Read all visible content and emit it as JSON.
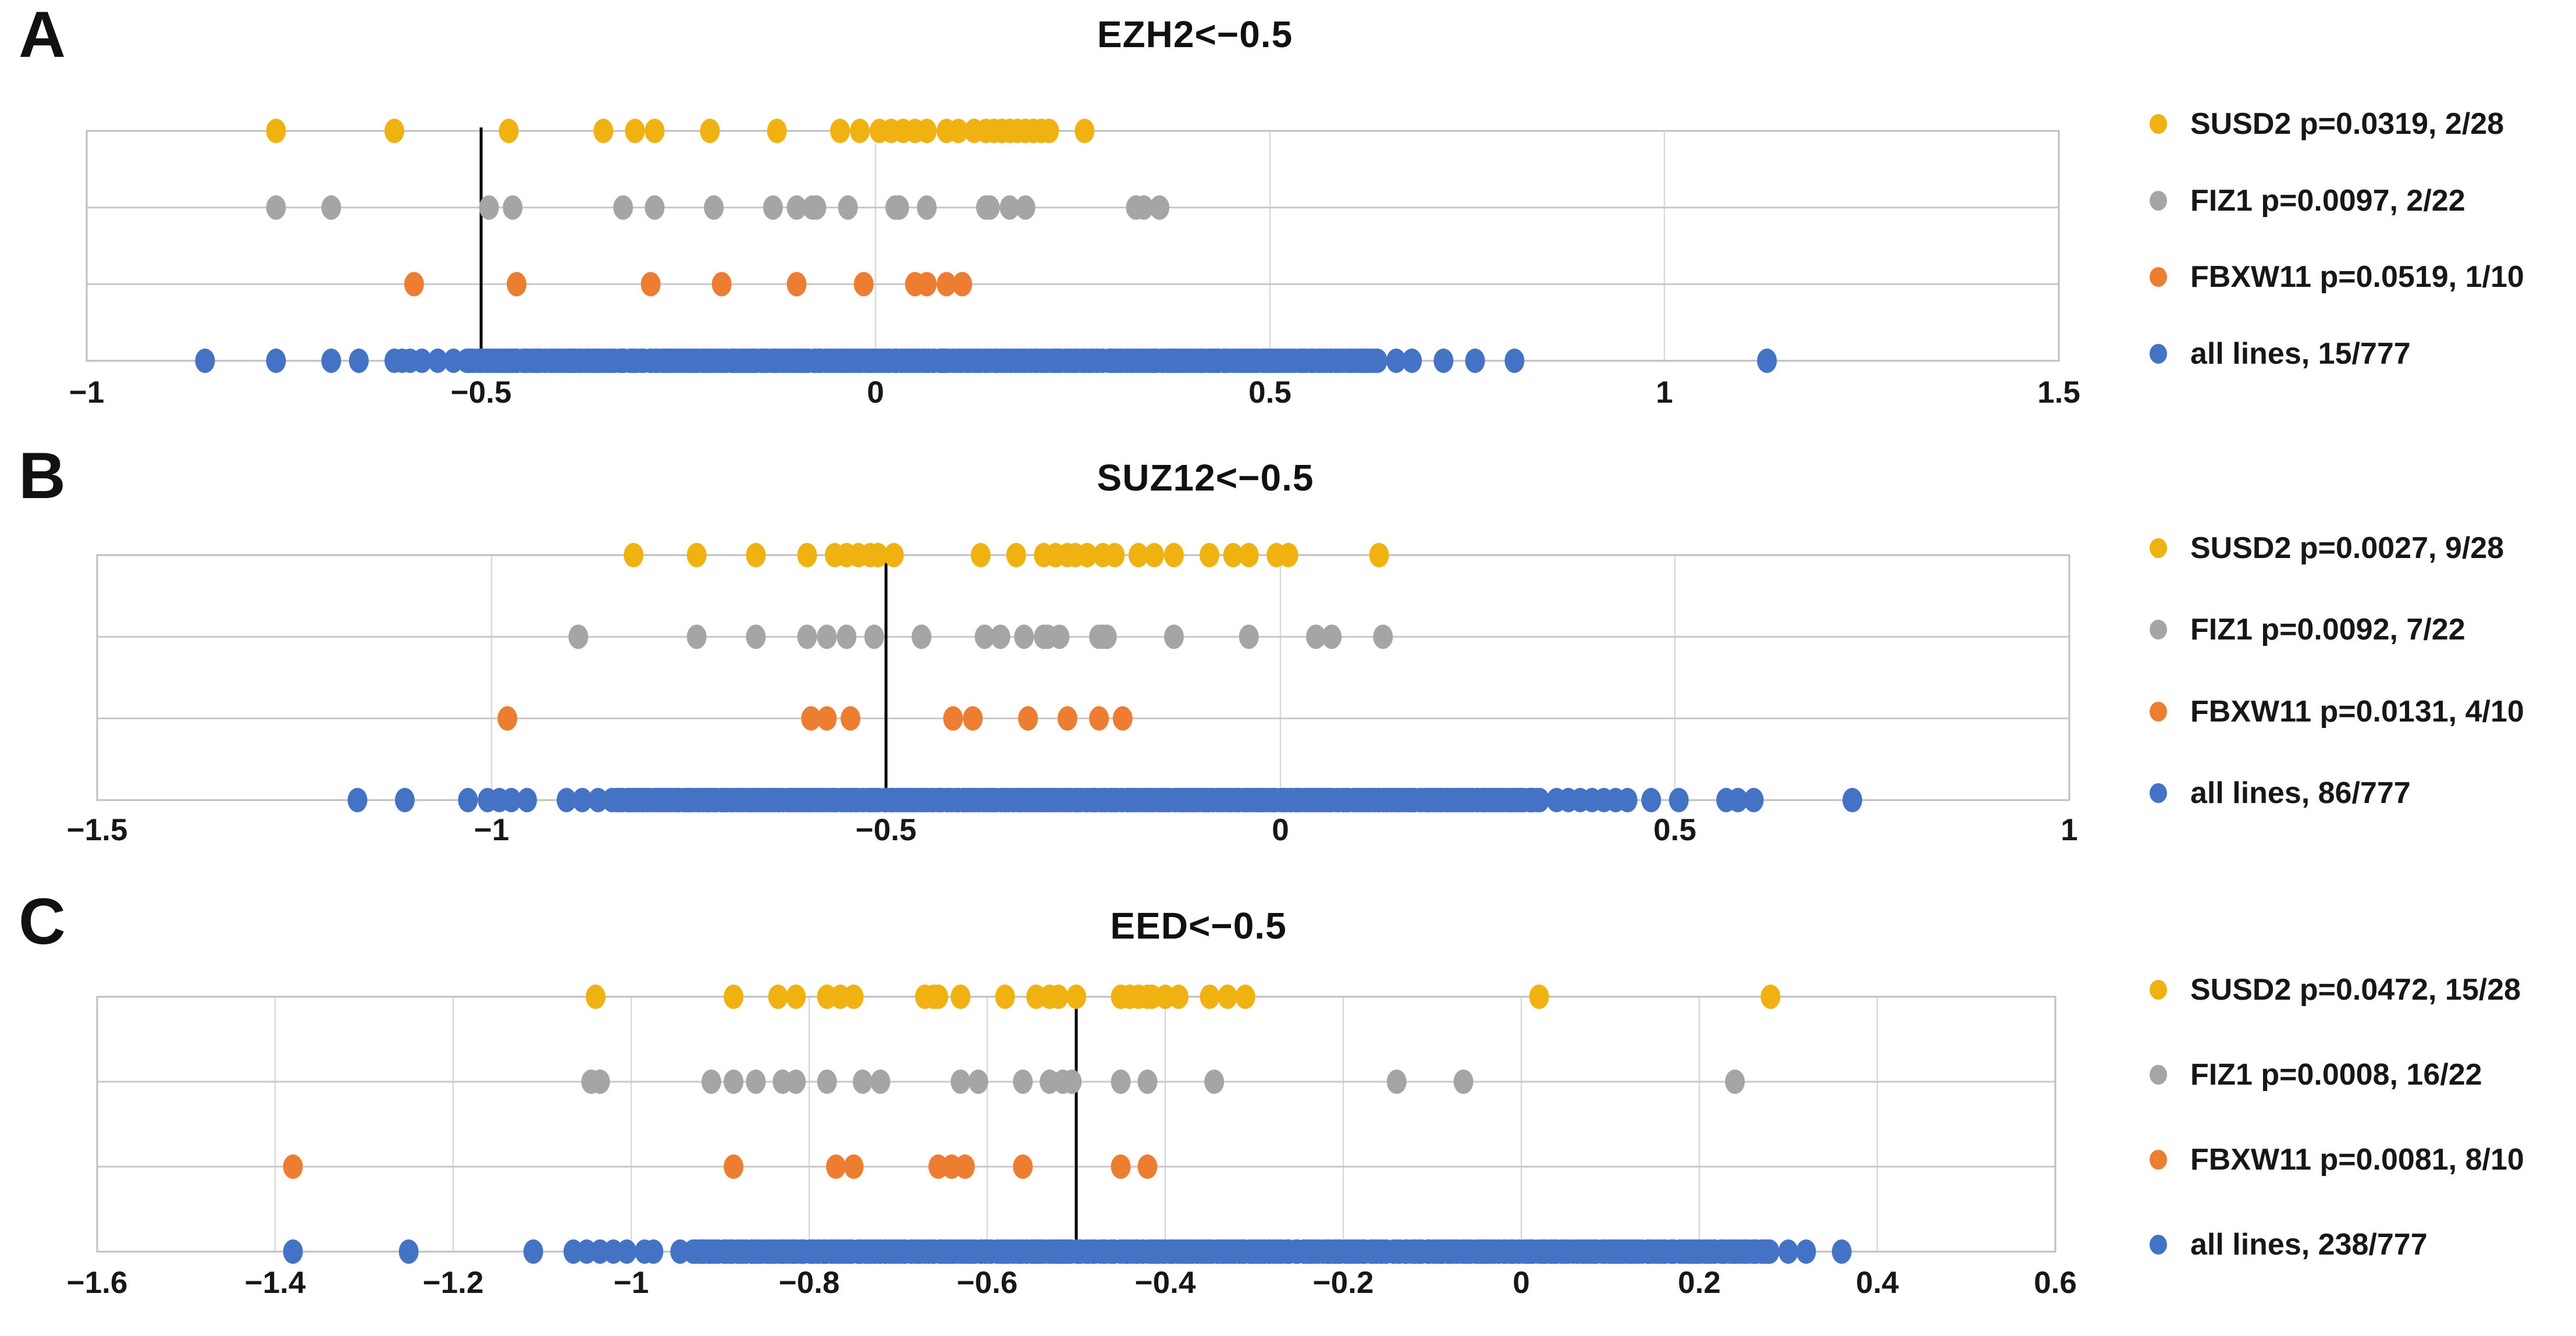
{
  "page": {
    "background": "#ffffff"
  },
  "colors": {
    "susd2": "#F0B211",
    "fiz1": "#A5A5A5",
    "fbxw11": "#ED7D31",
    "all_lines": "#4472C4",
    "reference_line": "#000000",
    "grid": "#D9D9D9",
    "row_line": "#C9C9C9",
    "plot_border": "#BFBFBF",
    "text": "#171717"
  },
  "chart_data": [
    {
      "type": "strip",
      "letter": "A",
      "title": "EZH2<−0.5",
      "x_axis": {
        "min": -1,
        "max": 1.5,
        "tick_values": [
          -1,
          -0.5,
          0,
          0.5,
          1,
          1.5
        ],
        "tick_labels": [
          "−1",
          "−0.5",
          "0",
          "0.5",
          "1",
          "1.5"
        ]
      },
      "reference_line_x": -0.5,
      "grid": true,
      "legend_position": "right",
      "series": [
        {
          "id": "susd2",
          "legend_label": "SUSD2 p=0.0319, 2/28",
          "color": "#F0B211",
          "row": 0,
          "points": [
            -0.76,
            -0.61,
            -0.465,
            -0.345,
            -0.305,
            -0.28,
            -0.21,
            -0.125,
            -0.045,
            -0.02,
            0.005,
            0.02,
            0.035,
            0.05,
            0.065,
            0.09,
            0.105,
            0.125,
            0.14,
            0.15,
            0.16,
            0.17,
            0.18,
            0.19,
            0.2,
            0.21,
            0.22,
            0.265
          ]
        },
        {
          "id": "fiz1",
          "legend_label": "FIZ1 p=0.0097, 2/22",
          "color": "#A5A5A5",
          "row": 1,
          "points": [
            -0.76,
            -0.69,
            -0.49,
            -0.46,
            -0.32,
            -0.28,
            -0.205,
            -0.13,
            -0.1,
            -0.08,
            -0.075,
            -0.035,
            0.025,
            0.03,
            0.065,
            0.14,
            0.145,
            0.17,
            0.19,
            0.33,
            0.34,
            0.36
          ]
        },
        {
          "id": "fbxw11",
          "legend_label": "FBXW11 p=0.0519, 1/10",
          "color": "#ED7D31",
          "row": 2,
          "points": [
            -0.585,
            -0.455,
            -0.285,
            -0.195,
            -0.1,
            -0.015,
            0.05,
            0.065,
            0.09,
            0.11
          ]
        },
        {
          "id": "all-lines",
          "legend_label": "all lines, 15/777",
          "color": "#4472C4",
          "row": 3,
          "points": [
            -0.85,
            -0.76,
            -0.69,
            -0.655,
            -0.61,
            -0.6,
            -0.59,
            -0.575,
            -0.555,
            -0.535,
            0.66,
            0.68,
            0.72,
            0.76,
            0.81,
            1.13
          ],
          "dense_band": {
            "from": -0.52,
            "to": 0.635,
            "count": 460
          }
        }
      ]
    },
    {
      "type": "strip",
      "letter": "B",
      "title": "SUZ12<−0.5",
      "x_axis": {
        "min": -1.5,
        "max": 1,
        "tick_values": [
          -1.5,
          -1,
          -0.5,
          0,
          0.5,
          1
        ],
        "tick_labels": [
          "−1.5",
          "−1",
          "−0.5",
          "0",
          "0.5",
          "1"
        ]
      },
      "reference_line_x": -0.5,
      "grid": true,
      "legend_position": "right",
      "series": [
        {
          "id": "susd2",
          "legend_label": "SUSD2 p=0.0027, 9/28",
          "color": "#F0B211",
          "row": 0,
          "points": [
            -0.82,
            -0.74,
            -0.665,
            -0.6,
            -0.565,
            -0.55,
            -0.535,
            -0.52,
            -0.51,
            -0.49,
            -0.38,
            -0.335,
            -0.3,
            -0.285,
            -0.27,
            -0.26,
            -0.245,
            -0.225,
            -0.21,
            -0.18,
            -0.16,
            -0.135,
            -0.09,
            -0.06,
            -0.04,
            -0.005,
            0.01,
            0.125
          ]
        },
        {
          "id": "fiz1",
          "legend_label": "FIZ1 p=0.0092, 7/22",
          "color": "#A5A5A5",
          "row": 1,
          "points": [
            -0.89,
            -0.74,
            -0.665,
            -0.6,
            -0.575,
            -0.55,
            -0.515,
            -0.455,
            -0.375,
            -0.355,
            -0.325,
            -0.3,
            -0.295,
            -0.28,
            -0.23,
            -0.225,
            -0.22,
            -0.135,
            -0.04,
            0.045,
            0.065,
            0.13
          ]
        },
        {
          "id": "fbxw11",
          "legend_label": "FBXW11 p=0.0131, 4/10",
          "color": "#ED7D31",
          "row": 2,
          "points": [
            -0.98,
            -0.595,
            -0.575,
            -0.545,
            -0.415,
            -0.39,
            -0.32,
            -0.27,
            -0.23,
            -0.2
          ]
        },
        {
          "id": "all-lines",
          "legend_label": "all lines, 86/777",
          "color": "#4472C4",
          "row": 3,
          "points": [
            -1.17,
            -1.11,
            -1.03,
            -1.005,
            -0.99,
            -0.975,
            -0.955,
            -0.905,
            -0.885,
            -0.865,
            0.35,
            0.365,
            0.38,
            0.395,
            0.41,
            0.425,
            0.44,
            0.47,
            0.505,
            0.565,
            0.58,
            0.6,
            0.725
          ],
          "dense_band": {
            "from": -0.845,
            "to": 0.33,
            "count": 470
          }
        }
      ]
    },
    {
      "type": "strip",
      "letter": "C",
      "title": "EED<−0.5",
      "x_axis": {
        "min": -1.6,
        "max": 0.6,
        "tick_values": [
          -1.6,
          -1.4,
          -1.2,
          -1,
          -0.8,
          -0.6,
          -0.4,
          -0.2,
          0,
          0.2,
          0.4,
          0.6
        ],
        "tick_labels": [
          "−1.6",
          "−1.4",
          "−1.2",
          "−1",
          "−0.8",
          "−0.6",
          "−0.4",
          "−0.2",
          "0",
          "0.2",
          "0.4",
          "0.6"
        ]
      },
      "reference_line_x": -0.5,
      "grid": true,
      "legend_position": "right",
      "series": [
        {
          "id": "susd2",
          "legend_label": "SUSD2 p=0.0472, 15/28",
          "color": "#F0B211",
          "row": 0,
          "points": [
            -1.04,
            -0.885,
            -0.835,
            -0.815,
            -0.78,
            -0.765,
            -0.75,
            -0.67,
            -0.66,
            -0.655,
            -0.63,
            -0.58,
            -0.545,
            -0.53,
            -0.52,
            -0.5,
            -0.45,
            -0.44,
            -0.43,
            -0.42,
            -0.415,
            -0.4,
            -0.385,
            -0.35,
            -0.33,
            -0.31,
            0.02,
            0.28
          ]
        },
        {
          "id": "fiz1",
          "legend_label": "FIZ1 p=0.0008, 16/22",
          "color": "#A5A5A5",
          "row": 1,
          "points": [
            -1.045,
            -1.035,
            -0.91,
            -0.885,
            -0.86,
            -0.83,
            -0.815,
            -0.78,
            -0.74,
            -0.72,
            -0.63,
            -0.61,
            -0.56,
            -0.53,
            -0.515,
            -0.505,
            -0.45,
            -0.42,
            -0.345,
            -0.14,
            -0.065,
            0.24
          ]
        },
        {
          "id": "fbxw11",
          "legend_label": "FBXW11 p=0.0081, 8/10",
          "color": "#ED7D31",
          "row": 2,
          "points": [
            -1.38,
            -0.885,
            -0.77,
            -0.75,
            -0.655,
            -0.64,
            -0.625,
            -0.56,
            -0.45,
            -0.42
          ]
        },
        {
          "id": "all-lines",
          "legend_label": "all lines, 238/777",
          "color": "#4472C4",
          "row": 3,
          "points": [
            -1.38,
            -1.25,
            -1.11,
            -1.065,
            -1.05,
            -1.035,
            -1.02,
            -1.005,
            -0.985,
            -0.975,
            -0.945,
            0.3,
            0.32,
            0.36
          ],
          "dense_band": {
            "from": -0.93,
            "to": 0.28,
            "count": 500
          }
        }
      ]
    }
  ]
}
